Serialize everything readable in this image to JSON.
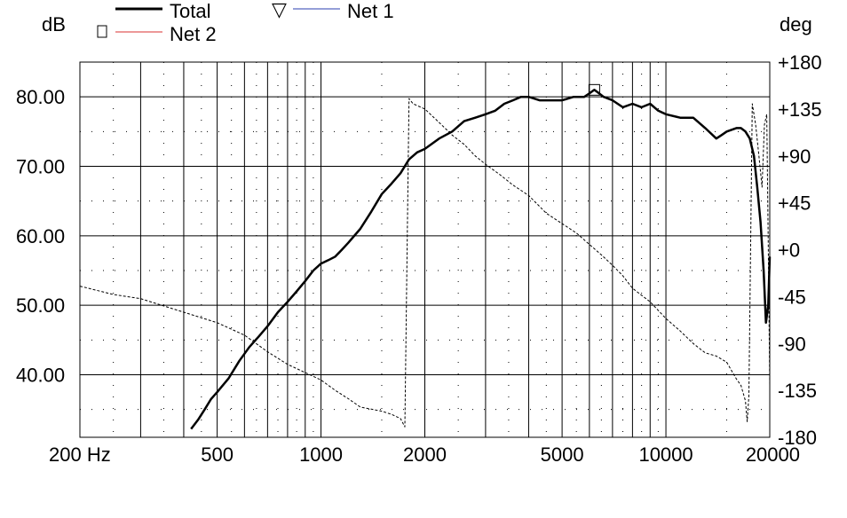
{
  "chart_data": {
    "type": "line",
    "units": {
      "left": "dB",
      "right": "deg"
    },
    "xaxis": {
      "scale": "log",
      "range": [
        200,
        20000
      ],
      "tick_values": [
        200,
        500,
        1000,
        2000,
        5000,
        10000,
        20000
      ],
      "tick_labels": [
        "200 Hz",
        "500",
        "1000",
        "2000",
        "5000",
        "10000",
        "20000"
      ]
    },
    "yaxis_left": {
      "range": [
        31,
        85
      ],
      "tick_values": [
        40,
        50,
        60,
        70,
        80
      ],
      "tick_labels": [
        "40.00",
        "50.00",
        "60.00",
        "70.00",
        "80.00"
      ]
    },
    "yaxis_right": {
      "range": [
        -180,
        180
      ],
      "tick_values": [
        180,
        135,
        90,
        45,
        0,
        -45,
        -90,
        -135,
        -180
      ],
      "tick_labels": [
        "+180",
        "+135",
        "+90",
        "+45",
        "+0",
        "-45",
        "-90",
        "-135",
        "-180"
      ]
    },
    "grid": true,
    "legend": {
      "placement": "top",
      "entries": [
        {
          "label": "Total",
          "marker": "none",
          "color": "#000000"
        },
        {
          "label": "Net 1",
          "marker": "▽",
          "color": "#2b3fb0"
        },
        {
          "label": "Net 2",
          "marker": "□",
          "color": "#d83030"
        }
      ]
    },
    "series": [
      {
        "name": "Total",
        "axis": "left",
        "style": "solid",
        "color": "#000000",
        "x": [
          420,
          440,
          460,
          480,
          500,
          540,
          580,
          620,
          660,
          700,
          750,
          800,
          850,
          900,
          950,
          1000,
          1050,
          1100,
          1150,
          1200,
          1300,
          1400,
          1500,
          1600,
          1700,
          1800,
          1900,
          2000,
          2200,
          2400,
          2600,
          2800,
          3000,
          3200,
          3400,
          3600,
          3800,
          4000,
          4300,
          4600,
          5000,
          5400,
          5800,
          6000,
          6200,
          6400,
          6600,
          7000,
          7500,
          8000,
          8500,
          9000,
          9500,
          10000,
          11000,
          12000,
          13000,
          14000,
          14500,
          15000,
          16000,
          16500,
          17000,
          17500,
          18000,
          18400,
          18800,
          19200,
          19500,
          19800,
          20000
        ],
        "y": [
          32.2,
          33.5,
          35,
          36.5,
          37.5,
          39.5,
          42,
          44,
          45.5,
          47,
          49,
          50.5,
          52,
          53.5,
          55,
          56,
          56.5,
          57,
          58,
          59,
          61,
          63.5,
          66,
          67.5,
          69,
          71,
          72,
          72.5,
          74,
          75,
          76.5,
          77,
          77.5,
          78,
          79,
          79.5,
          80,
          80,
          79.5,
          79.5,
          79.5,
          80,
          80,
          80.5,
          81,
          80.5,
          80,
          79.5,
          78.5,
          79,
          78.5,
          79,
          78,
          77.5,
          77,
          77,
          75.5,
          74,
          74.5,
          75,
          75.5,
          75.5,
          75,
          74,
          71.5,
          67,
          62,
          55,
          47.5,
          50,
          57
        ]
      },
      {
        "name": "",
        "axis": "right",
        "style": "dashed",
        "color": "#000000",
        "x": [
          200,
          250,
          300,
          400,
          500,
          600,
          700,
          800,
          900,
          1000,
          1100,
          1200,
          1300,
          1400,
          1500,
          1600,
          1700,
          1750,
          1800,
          1850,
          2000,
          2200,
          2400,
          2600,
          2800,
          3000,
          3300,
          3600,
          4000,
          4500,
          5000,
          5500,
          6000,
          6500,
          7000,
          7500,
          8000,
          9000,
          10000,
          11000,
          12000,
          13000,
          14000,
          15000,
          16000,
          16500,
          17000,
          17200,
          17400,
          17800,
          18200,
          18600,
          19000,
          19300,
          19600,
          19800,
          20000
        ],
        "y": [
          -35,
          -43,
          -47,
          -60,
          -70,
          -82,
          -98,
          -110,
          -118,
          -125,
          -135,
          -143,
          -151,
          -153,
          -155,
          -158,
          -162,
          -170,
          145,
          140,
          135,
          122,
          110,
          101,
          90,
          82,
          72,
          62,
          52,
          35,
          25,
          16,
          5,
          -5,
          -15,
          -25,
          -37,
          -50,
          -66,
          -78,
          -90,
          -99,
          -102,
          -108,
          -124,
          -130,
          -145,
          -165,
          -140,
          140,
          120,
          90,
          60,
          120,
          130,
          5,
          -130
        ]
      }
    ],
    "markers": [
      {
        "series": "Net 2",
        "shape": "square",
        "x": 6200,
        "y": 81
      }
    ]
  }
}
